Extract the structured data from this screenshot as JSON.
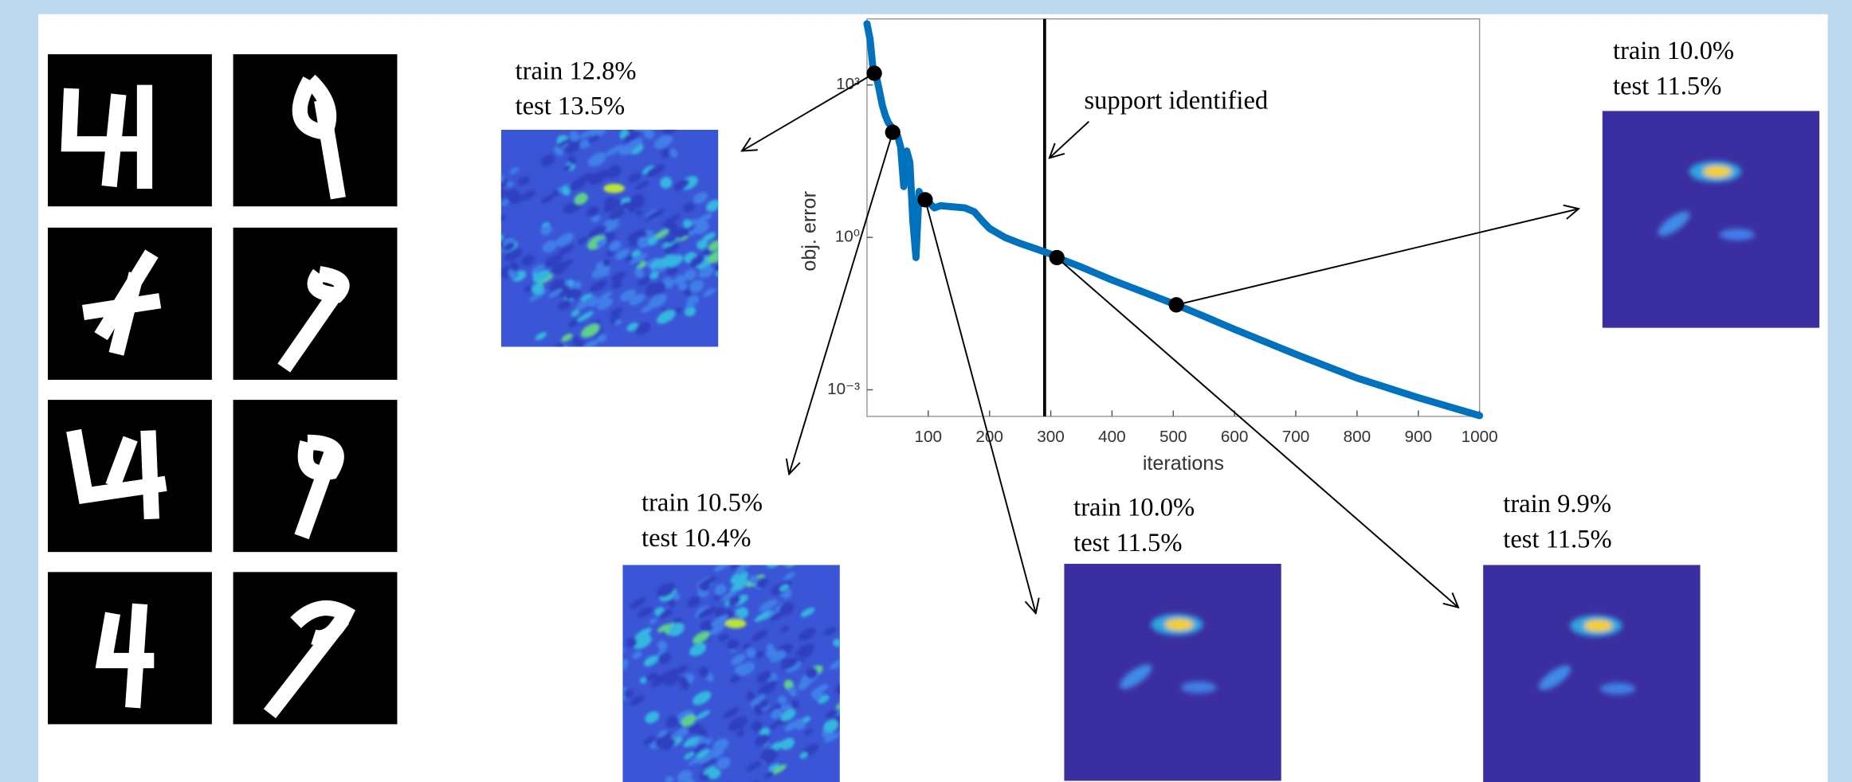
{
  "chart_data": {
    "type": "line",
    "xlabel": "iterations",
    "ylabel": "obj. error",
    "xlim": [
      0,
      1000
    ],
    "xticks": [
      100,
      200,
      300,
      400,
      500,
      600,
      700,
      800,
      900,
      1000
    ],
    "ylim": [
      0.0003,
      20000
    ],
    "log_y": true,
    "yticks": [
      {
        "value": 1000,
        "label": "10³"
      },
      {
        "value": 1,
        "label": "10⁰"
      },
      {
        "value": 0.001,
        "label": "10⁻³"
      }
    ],
    "x": [
      0,
      5,
      10,
      15,
      20,
      25,
      30,
      35,
      40,
      45,
      50,
      55,
      60,
      65,
      70,
      75,
      80,
      85,
      90,
      95,
      100,
      110,
      120,
      140,
      160,
      175,
      190,
      200,
      225,
      250,
      275,
      300,
      310,
      350,
      400,
      450,
      505,
      550,
      600,
      700,
      800,
      900,
      1000
    ],
    "series": [
      {
        "color": "#0072bd",
        "values": [
          16000,
          8000,
          2000,
          1500,
          800,
          400,
          250,
          180,
          150,
          117,
          100,
          60,
          10,
          50,
          30,
          2,
          0.4,
          8,
          6,
          5.5,
          5,
          3.8,
          4.2,
          4,
          3.8,
          3.2,
          2,
          1.5,
          1,
          0.76,
          0.6,
          0.47,
          0.4,
          0.26,
          0.145,
          0.085,
          0.047,
          0.028,
          0.0155,
          0.005,
          0.0017,
          0.0007,
          0.00031
        ]
      }
    ],
    "highlights": {
      "x": [
        12,
        42,
        95,
        310,
        505
      ],
      "y": [
        1700,
        117,
        5.5,
        0.4,
        0.047
      ],
      "color": "#000000"
    },
    "vline": {
      "x": 290,
      "label": "support identified"
    },
    "snapshots": [
      {
        "train": "train 12.8%",
        "test": "test 13.5%"
      },
      {
        "train": "train 10.5%",
        "test": "test 10.4%"
      },
      {
        "train": "train 10.0%",
        "test": "test 11.5%"
      },
      {
        "train": "train 9.9%",
        "test": "test 11.5%"
      },
      {
        "train": "train 10.0%",
        "test": "test 11.5%"
      }
    ]
  }
}
